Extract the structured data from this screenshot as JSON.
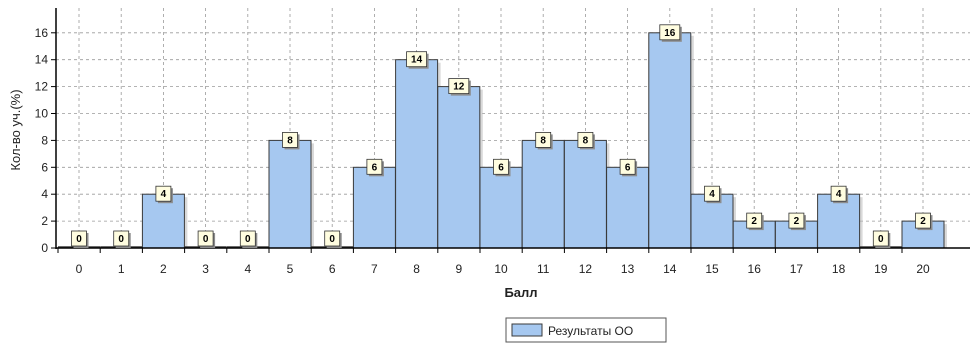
{
  "chart_data": {
    "type": "bar",
    "categories": [
      "0",
      "1",
      "2",
      "3",
      "4",
      "5",
      "6",
      "7",
      "8",
      "9",
      "10",
      "11",
      "12",
      "13",
      "14",
      "15",
      "16",
      "17",
      "18",
      "19",
      "20"
    ],
    "series": [
      {
        "name": "Результаты ОО",
        "values": [
          0,
          0,
          4,
          0,
          0,
          8,
          0,
          6,
          14,
          12,
          6,
          8,
          8,
          6,
          16,
          4,
          2,
          2,
          4,
          0,
          2
        ],
        "color": "#a6c8f0"
      }
    ],
    "data_labels": [
      "0",
      "0",
      "4",
      "0",
      "0",
      "8",
      "0",
      "6",
      "14",
      "12",
      "6",
      "8",
      "8",
      "6",
      "16",
      "4",
      "2",
      "2",
      "4",
      "0",
      "2"
    ],
    "xlabel": "Балл",
    "ylabel": "Кол-во уч.(%)",
    "ylim": [
      0,
      17
    ],
    "yticks": [
      "0",
      "2",
      "4",
      "6",
      "8",
      "10",
      "12",
      "14",
      "16"
    ],
    "grid": true,
    "legend_position": "bottom-center",
    "colors": {
      "bar_fill": "#a6c8f0",
      "bar_stroke": "#3a3a3a",
      "grid": "#9a9a9a",
      "label_fill": "#fffde0"
    }
  }
}
